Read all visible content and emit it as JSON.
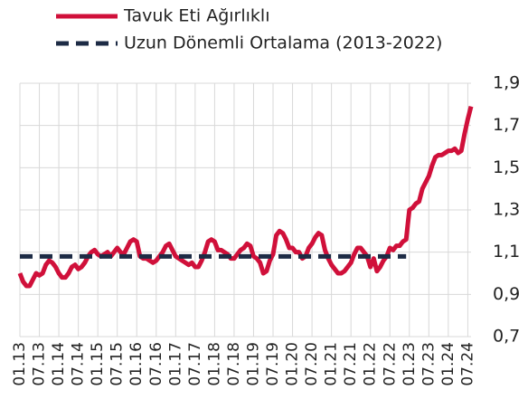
{
  "chart_data": {
    "type": "line",
    "categories": [
      "01.13",
      null,
      null,
      null,
      null,
      null,
      "07.13",
      null,
      null,
      null,
      null,
      null,
      "01.14",
      null,
      null,
      null,
      null,
      null,
      "07.14",
      null,
      null,
      null,
      null,
      null,
      "01.15",
      null,
      null,
      null,
      null,
      null,
      "07.15",
      null,
      null,
      null,
      null,
      null,
      "01.16",
      null,
      null,
      null,
      null,
      null,
      "07.16",
      null,
      null,
      null,
      null,
      null,
      "01.17",
      null,
      null,
      null,
      null,
      null,
      "07.17",
      null,
      null,
      null,
      null,
      null,
      "01.18",
      null,
      null,
      null,
      null,
      null,
      "07.18",
      null,
      null,
      null,
      null,
      null,
      "01.19",
      null,
      null,
      null,
      null,
      null,
      "07.19",
      null,
      null,
      null,
      null,
      null,
      "01.20",
      null,
      null,
      null,
      null,
      null,
      "07.20",
      null,
      null,
      null,
      null,
      null,
      "01.21",
      null,
      null,
      null,
      null,
      null,
      "07.21",
      null,
      null,
      null,
      null,
      null,
      "01.22",
      null,
      null,
      null,
      null,
      null,
      "07.22",
      null,
      null,
      null,
      null,
      null,
      "01.23",
      null,
      null,
      null,
      null,
      null,
      "07.23",
      null,
      null,
      null,
      null,
      null,
      "01.24",
      null,
      null,
      null,
      null,
      null,
      "07.24",
      null
    ],
    "series": [
      {
        "name": "Tavuk Eti Ağırlıklı",
        "color": "#d0103a",
        "dashed": false,
        "values": [
          1.0,
          0.96,
          0.94,
          0.94,
          0.97,
          1.0,
          0.99,
          1.0,
          1.04,
          1.06,
          1.05,
          1.03,
          1.0,
          0.98,
          0.98,
          1.0,
          1.03,
          1.04,
          1.02,
          1.03,
          1.05,
          1.08,
          1.1,
          1.11,
          1.09,
          1.08,
          1.09,
          1.1,
          1.08,
          1.1,
          1.12,
          1.1,
          1.09,
          1.12,
          1.15,
          1.16,
          1.15,
          1.08,
          1.07,
          1.07,
          1.06,
          1.05,
          1.06,
          1.08,
          1.1,
          1.13,
          1.14,
          1.11,
          1.08,
          1.07,
          1.06,
          1.05,
          1.04,
          1.05,
          1.03,
          1.03,
          1.06,
          1.1,
          1.15,
          1.16,
          1.15,
          1.11,
          1.11,
          1.1,
          1.09,
          1.07,
          1.07,
          1.09,
          1.11,
          1.12,
          1.14,
          1.13,
          1.08,
          1.07,
          1.05,
          1.0,
          1.01,
          1.06,
          1.09,
          1.18,
          1.2,
          1.19,
          1.16,
          1.12,
          1.12,
          1.1,
          1.1,
          1.07,
          1.08,
          1.12,
          1.14,
          1.17,
          1.19,
          1.18,
          1.11,
          1.07,
          1.04,
          1.02,
          1.0,
          1.0,
          1.01,
          1.03,
          1.05,
          1.09,
          1.12,
          1.12,
          1.1,
          1.08,
          1.03,
          1.07,
          1.01,
          1.03,
          1.06,
          1.08,
          1.12,
          1.11,
          1.13,
          1.13,
          1.15,
          1.16,
          1.3,
          1.31,
          1.33,
          1.34,
          1.4,
          1.43,
          1.46,
          1.51,
          1.55,
          1.56,
          1.56,
          1.57,
          1.58,
          1.58,
          1.59,
          1.57,
          1.58,
          1.66,
          1.73,
          1.79
        ]
      },
      {
        "name": "Uzun Dönemli Ortalama (2013-2022)",
        "color": "#1d2b45",
        "dashed": true,
        "values": [
          1.08,
          1.08,
          1.08,
          1.08,
          1.08,
          1.08,
          1.08,
          1.08,
          1.08,
          1.08,
          1.08,
          1.08,
          1.08,
          1.08,
          1.08,
          1.08,
          1.08,
          1.08,
          1.08,
          1.08,
          1.08,
          1.08,
          1.08,
          1.08,
          1.08,
          1.08,
          1.08,
          1.08,
          1.08,
          1.08,
          1.08,
          1.08,
          1.08,
          1.08,
          1.08,
          1.08,
          1.08,
          1.08,
          1.08,
          1.08,
          1.08,
          1.08,
          1.08,
          1.08,
          1.08,
          1.08,
          1.08,
          1.08,
          1.08,
          1.08,
          1.08,
          1.08,
          1.08,
          1.08,
          1.08,
          1.08,
          1.08,
          1.08,
          1.08,
          1.08,
          1.08,
          1.08,
          1.08,
          1.08,
          1.08,
          1.08,
          1.08,
          1.08,
          1.08,
          1.08,
          1.08,
          1.08,
          1.08,
          1.08,
          1.08,
          1.08,
          1.08,
          1.08,
          1.08,
          1.08,
          1.08,
          1.08,
          1.08,
          1.08,
          1.08,
          1.08,
          1.08,
          1.08,
          1.08,
          1.08,
          1.08,
          1.08,
          1.08,
          1.08,
          1.08,
          1.08,
          1.08,
          1.08,
          1.08,
          1.08,
          1.08,
          1.08,
          1.08,
          1.08,
          1.08,
          1.08,
          1.08,
          1.08,
          1.08,
          1.08,
          1.08,
          1.08,
          1.08,
          1.08,
          1.08,
          1.08,
          1.08,
          1.08,
          1.08,
          1.08,
          null,
          null,
          null,
          null,
          null,
          null,
          null,
          null,
          null,
          null,
          null,
          null,
          null,
          null,
          null,
          null,
          null,
          null,
          null,
          null
        ]
      }
    ],
    "ylim": [
      0.7,
      1.9
    ],
    "yticks": [
      {
        "value": 0.7,
        "label": "0,7"
      },
      {
        "value": 0.9,
        "label": "0,9"
      },
      {
        "value": 1.1,
        "label": "1,1"
      },
      {
        "value": 1.3,
        "label": "1,3"
      },
      {
        "value": 1.5,
        "label": "1,5"
      },
      {
        "value": 1.7,
        "label": "1,7"
      },
      {
        "value": 1.9,
        "label": "1,9"
      }
    ],
    "grid": true
  }
}
